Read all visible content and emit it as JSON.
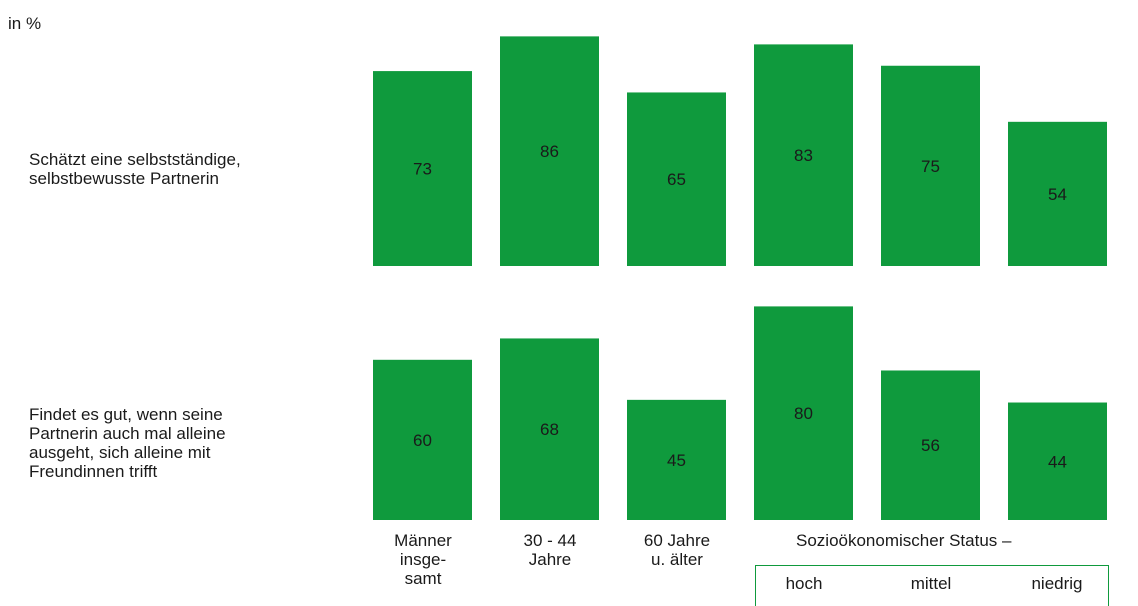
{
  "unit_label": "in %",
  "row_labels": [
    {
      "lines": [
        "Schätzt eine selbstständige,",
        "selbstbewusste Partnerin"
      ]
    },
    {
      "lines": [
        "Findet es gut, wenn seine",
        "Partnerin auch mal alleine",
        "ausgeht, sich alleine mit",
        "Freundinnen trifft"
      ]
    }
  ],
  "categories": [
    {
      "lines": [
        "Männer",
        "insge-",
        "samt"
      ]
    },
    {
      "lines": [
        "30 - 44",
        "Jahre"
      ]
    },
    {
      "lines": [
        "60 Jahre",
        "u. älter"
      ]
    }
  ],
  "group_title": "Sozioökonomischer Status –",
  "status_labels": [
    "hoch",
    "mittel",
    "niedrig"
  ],
  "colors": {
    "bar": "#0f9a3d",
    "label": "#1a1a1a"
  },
  "chart_data": {
    "type": "bar",
    "categories": [
      "Männer insgesamt",
      "30 - 44 Jahre",
      "60 Jahre u. älter",
      "hoch",
      "mittel",
      "niedrig"
    ],
    "series": [
      {
        "name": "Schätzt eine selbstständige, selbstbewusste Partnerin",
        "values": [
          73,
          86,
          65,
          83,
          75,
          54
        ]
      },
      {
        "name": "Findet es gut, wenn seine Partnerin auch mal alleine ausgeht, sich alleine mit Freundinnen trifft",
        "values": [
          60,
          68,
          45,
          80,
          56,
          44
        ]
      }
    ],
    "ylim": [
      0,
      100
    ]
  }
}
